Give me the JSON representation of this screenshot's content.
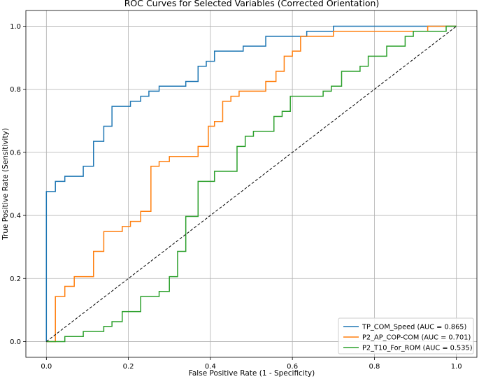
{
  "chart_data": {
    "type": "line",
    "title": "ROC Curves for Selected Variables (Corrected Orientation)",
    "xlabel": "False Positive Rate (1 - Specificity)",
    "ylabel": "True Positive Rate (Sensitivity)",
    "xlim": [
      -0.05,
      1.05
    ],
    "ylim": [
      -0.05,
      1.05
    ],
    "xticks": [
      "0.0",
      "0.2",
      "0.4",
      "0.6",
      "0.8",
      "1.0"
    ],
    "yticks": [
      "0.0",
      "0.2",
      "0.4",
      "0.6",
      "0.8",
      "1.0"
    ],
    "grid": true,
    "legend_position": "lower-right",
    "series": [
      {
        "name": "TP_COM_Speed (AUC = 0.865)",
        "color": "#1f77b4",
        "points": [
          [
            0,
            0
          ],
          [
            0,
            0.476
          ],
          [
            0.022,
            0.476
          ],
          [
            0.022,
            0.508
          ],
          [
            0.045,
            0.508
          ],
          [
            0.045,
            0.524
          ],
          [
            0.09,
            0.524
          ],
          [
            0.09,
            0.556
          ],
          [
            0.115,
            0.556
          ],
          [
            0.115,
            0.635
          ],
          [
            0.14,
            0.635
          ],
          [
            0.14,
            0.683
          ],
          [
            0.16,
            0.683
          ],
          [
            0.16,
            0.746
          ],
          [
            0.205,
            0.746
          ],
          [
            0.205,
            0.762
          ],
          [
            0.23,
            0.762
          ],
          [
            0.23,
            0.778
          ],
          [
            0.25,
            0.778
          ],
          [
            0.25,
            0.794
          ],
          [
            0.275,
            0.794
          ],
          [
            0.275,
            0.81
          ],
          [
            0.34,
            0.81
          ],
          [
            0.34,
            0.825
          ],
          [
            0.37,
            0.825
          ],
          [
            0.37,
            0.873
          ],
          [
            0.39,
            0.873
          ],
          [
            0.39,
            0.889
          ],
          [
            0.41,
            0.889
          ],
          [
            0.41,
            0.921
          ],
          [
            0.48,
            0.921
          ],
          [
            0.48,
            0.937
          ],
          [
            0.535,
            0.937
          ],
          [
            0.535,
            0.968
          ],
          [
            0.635,
            0.968
          ],
          [
            0.635,
            0.984
          ],
          [
            0.7,
            0.984
          ],
          [
            0.7,
            1.0
          ],
          [
            1.0,
            1.0
          ]
        ]
      },
      {
        "name": "P2_AP_COP-COM (AUC = 0.701)",
        "color": "#ff7f0e",
        "points": [
          [
            0,
            0
          ],
          [
            0.022,
            0
          ],
          [
            0.022,
            0.143
          ],
          [
            0.045,
            0.143
          ],
          [
            0.045,
            0.175
          ],
          [
            0.068,
            0.175
          ],
          [
            0.068,
            0.206
          ],
          [
            0.115,
            0.206
          ],
          [
            0.115,
            0.286
          ],
          [
            0.14,
            0.286
          ],
          [
            0.14,
            0.349
          ],
          [
            0.185,
            0.349
          ],
          [
            0.185,
            0.365
          ],
          [
            0.205,
            0.365
          ],
          [
            0.205,
            0.381
          ],
          [
            0.23,
            0.381
          ],
          [
            0.23,
            0.413
          ],
          [
            0.255,
            0.413
          ],
          [
            0.255,
            0.556
          ],
          [
            0.275,
            0.556
          ],
          [
            0.275,
            0.571
          ],
          [
            0.3,
            0.571
          ],
          [
            0.3,
            0.587
          ],
          [
            0.37,
            0.587
          ],
          [
            0.37,
            0.619
          ],
          [
            0.395,
            0.619
          ],
          [
            0.395,
            0.683
          ],
          [
            0.41,
            0.683
          ],
          [
            0.41,
            0.698
          ],
          [
            0.43,
            0.698
          ],
          [
            0.43,
            0.762
          ],
          [
            0.45,
            0.762
          ],
          [
            0.45,
            0.778
          ],
          [
            0.47,
            0.778
          ],
          [
            0.47,
            0.794
          ],
          [
            0.535,
            0.794
          ],
          [
            0.535,
            0.825
          ],
          [
            0.56,
            0.825
          ],
          [
            0.56,
            0.857
          ],
          [
            0.58,
            0.857
          ],
          [
            0.58,
            0.905
          ],
          [
            0.6,
            0.905
          ],
          [
            0.6,
            0.921
          ],
          [
            0.62,
            0.921
          ],
          [
            0.62,
            0.968
          ],
          [
            0.7,
            0.968
          ],
          [
            0.7,
            0.984
          ],
          [
            0.93,
            0.984
          ],
          [
            0.93,
            1.0
          ],
          [
            1.0,
            1.0
          ]
        ]
      },
      {
        "name": "P2_T10_For_ROM (AUC = 0.535)",
        "color": "#2ca02c",
        "points": [
          [
            0,
            0
          ],
          [
            0.045,
            0
          ],
          [
            0.045,
            0.016
          ],
          [
            0.09,
            0.016
          ],
          [
            0.09,
            0.032
          ],
          [
            0.14,
            0.032
          ],
          [
            0.14,
            0.048
          ],
          [
            0.16,
            0.048
          ],
          [
            0.16,
            0.063
          ],
          [
            0.185,
            0.063
          ],
          [
            0.185,
            0.095
          ],
          [
            0.23,
            0.095
          ],
          [
            0.23,
            0.143
          ],
          [
            0.275,
            0.143
          ],
          [
            0.275,
            0.159
          ],
          [
            0.3,
            0.159
          ],
          [
            0.3,
            0.206
          ],
          [
            0.32,
            0.206
          ],
          [
            0.32,
            0.286
          ],
          [
            0.34,
            0.286
          ],
          [
            0.34,
            0.397
          ],
          [
            0.37,
            0.397
          ],
          [
            0.37,
            0.508
          ],
          [
            0.41,
            0.508
          ],
          [
            0.41,
            0.54
          ],
          [
            0.465,
            0.54
          ],
          [
            0.465,
            0.619
          ],
          [
            0.485,
            0.619
          ],
          [
            0.485,
            0.651
          ],
          [
            0.505,
            0.651
          ],
          [
            0.505,
            0.667
          ],
          [
            0.555,
            0.667
          ],
          [
            0.555,
            0.714
          ],
          [
            0.575,
            0.714
          ],
          [
            0.575,
            0.73
          ],
          [
            0.595,
            0.73
          ],
          [
            0.595,
            0.778
          ],
          [
            0.675,
            0.778
          ],
          [
            0.675,
            0.794
          ],
          [
            0.695,
            0.794
          ],
          [
            0.695,
            0.81
          ],
          [
            0.72,
            0.81
          ],
          [
            0.72,
            0.857
          ],
          [
            0.765,
            0.857
          ],
          [
            0.765,
            0.873
          ],
          [
            0.785,
            0.873
          ],
          [
            0.785,
            0.905
          ],
          [
            0.83,
            0.905
          ],
          [
            0.83,
            0.937
          ],
          [
            0.875,
            0.937
          ],
          [
            0.875,
            0.968
          ],
          [
            0.895,
            0.968
          ],
          [
            0.895,
            0.984
          ],
          [
            0.975,
            0.984
          ],
          [
            0.975,
            1.0
          ],
          [
            1.0,
            1.0
          ]
        ]
      },
      {
        "name": "",
        "color": "#000000",
        "dashed": true,
        "points": [
          [
            0,
            0
          ],
          [
            1,
            1
          ]
        ]
      }
    ]
  }
}
